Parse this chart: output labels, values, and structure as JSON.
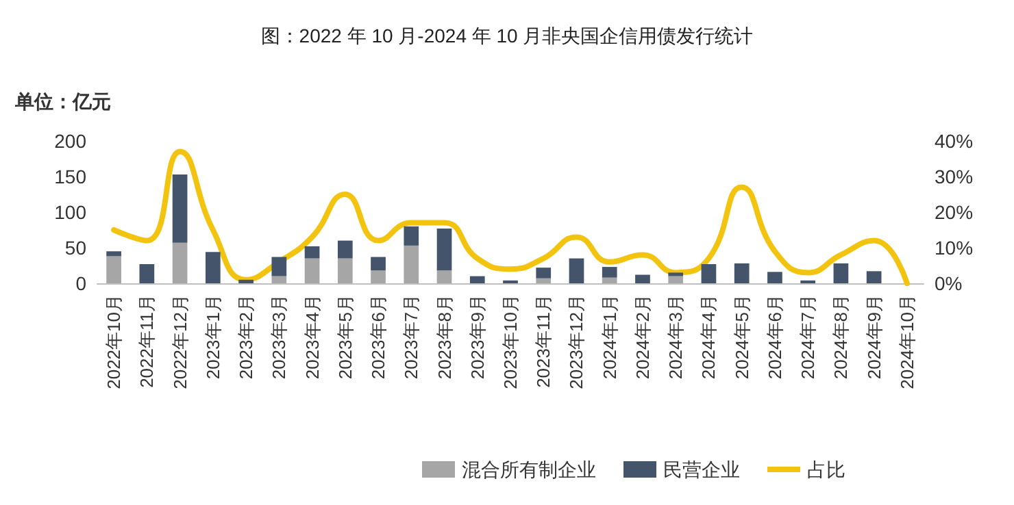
{
  "chart_data": {
    "type": "bar",
    "title": "图：2022 年 10 月-2024 年 10 月非央国企信用债发行统计",
    "ylabel": "单位：亿元",
    "stacked": true,
    "categories": [
      "2022年10月",
      "2022年11月",
      "2022年12月",
      "2023年1月",
      "2023年2月",
      "2023年3月",
      "2023年4月",
      "2023年5月",
      "2023年6月",
      "2023年7月",
      "2023年8月",
      "2023年9月",
      "2023年10月",
      "2023年11月",
      "2023年12月",
      "2024年1月",
      "2024年2月",
      "2024年3月",
      "2024年4月",
      "2024年5月",
      "2024年6月",
      "2024年7月",
      "2024年8月",
      "2024年9月",
      "2024年10月"
    ],
    "series": [
      {
        "name": "混合所有制企业",
        "color": "#a6a6a6",
        "values": [
          38,
          0,
          57,
          0,
          0,
          10,
          35,
          35,
          18,
          53,
          18,
          0,
          0,
          7,
          0,
          8,
          0,
          10,
          0,
          0,
          0,
          0,
          0,
          0,
          0
        ]
      },
      {
        "name": "民营企业",
        "color": "#44546a",
        "values": [
          7,
          27,
          96,
          44,
          5,
          27,
          17,
          25,
          19,
          27,
          59,
          10,
          4,
          15,
          35,
          15,
          12,
          5,
          27,
          28,
          16,
          4,
          28,
          17,
          0
        ]
      },
      {
        "name": "占比",
        "type": "line",
        "axis": "y2",
        "color": "#f2c40f",
        "marker": "none",
        "values": [
          15,
          12,
          37,
          15,
          1,
          6,
          13,
          25,
          12,
          17,
          17,
          7,
          4,
          7,
          13,
          6,
          8,
          3,
          7,
          27,
          9,
          3,
          8,
          12,
          0
        ]
      }
    ],
    "ylim": [
      0,
      200
    ],
    "yticks": [
      0,
      50,
      100,
      150,
      200
    ],
    "y2lim": [
      0,
      40
    ],
    "y2ticks": [
      {
        "value": 0,
        "label": "0%"
      },
      {
        "value": 10,
        "label": "10%"
      },
      {
        "value": 20,
        "label": "20%"
      },
      {
        "value": 30,
        "label": "30%"
      },
      {
        "value": 40,
        "label": "40%"
      }
    ],
    "grid": false,
    "legend": "bottom"
  }
}
